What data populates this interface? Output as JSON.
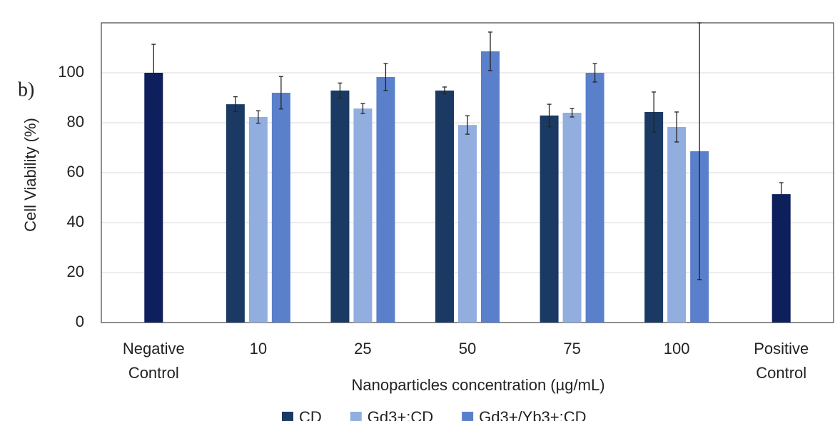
{
  "chart_data": {
    "type": "bar",
    "panel_label": "b)",
    "x_label": "Nanoparticles concentration (µg/mL)",
    "y_label": "Cell Viability (%)",
    "categories": [
      "Negative Control",
      "10",
      "25",
      "50",
      "75",
      "100",
      "Positive Control"
    ],
    "series": [
      {
        "name": "CD",
        "color": "#1b3a63",
        "values": [
          null,
          87.4,
          92.9,
          92.9,
          82.9,
          84.3,
          null
        ],
        "errors": [
          null,
          3,
          3,
          1.4,
          4.5,
          8,
          null
        ]
      },
      {
        "name": "Gd3+:CD",
        "color": "#92aedf",
        "values": [
          null,
          82.3,
          85.7,
          79.1,
          84,
          78.3,
          null
        ],
        "errors": [
          null,
          2.5,
          2,
          3.7,
          1.7,
          6,
          null
        ]
      },
      {
        "name": "Gd3+/Yb3+:CD",
        "color": "#5a7fcb",
        "values": [
          null,
          92,
          98.3,
          108.6,
          100,
          68.6,
          null
        ],
        "errors": [
          null,
          6.5,
          5.4,
          7.7,
          3.7,
          51.4,
          null
        ]
      }
    ],
    "controls": {
      "color": "#0d1f5c",
      "values": [
        100,
        null,
        null,
        null,
        null,
        null,
        51.4
      ],
      "errors": [
        11.4,
        null,
        null,
        null,
        null,
        null,
        4.6
      ]
    },
    "ylim": [
      0,
      120
    ],
    "yticks": [
      0,
      20,
      40,
      60,
      80,
      100
    ],
    "grid": true,
    "legend": "bottom"
  }
}
